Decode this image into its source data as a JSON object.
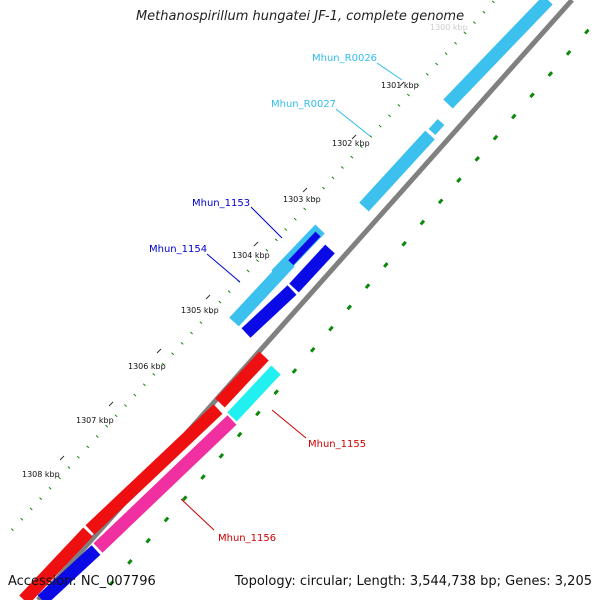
{
  "title": "Methanospirillum hungatei JF-1, complete genome",
  "footer": {
    "accession": "Accession: NC_007796",
    "summary": "Topology: circular; Length: 3,544,738 bp; Genes: 3,205"
  },
  "ticks": [
    "1300 kbp",
    "1301 kbp",
    "1302 kbp",
    "1303 kbp",
    "1304 kbp",
    "1305 kbp",
    "1306 kbp",
    "1307 kbp",
    "1308 kbp"
  ],
  "features": [
    {
      "label": "Mhun_R0026",
      "color": "#33bbee"
    },
    {
      "label": "Mhun_R0027",
      "color": "#33bbee"
    },
    {
      "label": "Mhun_1153",
      "color": "#0000cc"
    },
    {
      "label": "Mhun_1154",
      "color": "#0000cc"
    },
    {
      "label": "Mhun_1155",
      "color": "#cc0000"
    },
    {
      "label": "Mhun_1156",
      "color": "#cc0000"
    }
  ],
  "colors": {
    "backbone": "#808080",
    "skyblue": "#3cc0ee",
    "blue": "#0a0ae6",
    "cyan": "#22f0f0",
    "red": "#ee1010",
    "pink": "#f030a0",
    "dots_outer": "#0a8a0a",
    "dots_inner": "#0a8a0a"
  }
}
